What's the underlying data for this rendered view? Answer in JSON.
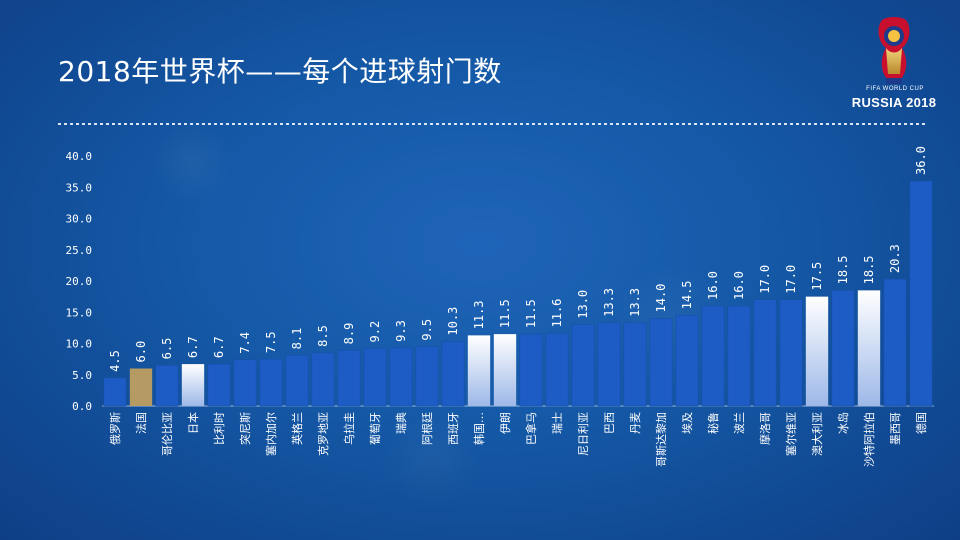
{
  "slide": {
    "title": "2018年世界杯——每个进球射门数",
    "logo_line1": "FIFA WORLD CUP",
    "logo_line2": "RUSSIA 2018"
  },
  "colors": {
    "bar_default": "#1d5cc4",
    "bar_highlight_white": "#e6ecf8",
    "bar_highlight_gold": "#b59b63"
  },
  "chart_data": {
    "type": "bar",
    "title": "",
    "xlabel": "",
    "ylabel": "",
    "ylim": [
      0,
      40
    ],
    "yticks": [
      "0.0",
      "5.0",
      "10.0",
      "15.0",
      "20.0",
      "25.0",
      "30.0",
      "35.0",
      "40.0"
    ],
    "grid": false,
    "categories": [
      "俄罗斯",
      "法国",
      "哥伦比亚",
      "日本",
      "比利时",
      "突尼斯",
      "塞内加尔",
      "英格兰",
      "克罗地亚",
      "乌拉圭",
      "葡萄牙",
      "瑞典",
      "阿根廷",
      "西班牙",
      "韩国…",
      "伊朗",
      "巴拿马",
      "瑞士",
      "尼日利亚",
      "巴西",
      "丹麦",
      "哥斯达黎加",
      "埃及",
      "秘鲁",
      "波兰",
      "摩洛哥",
      "塞尔维亚",
      "澳大利亚",
      "冰岛",
      "沙特阿拉伯",
      "墨西哥",
      "德国"
    ],
    "values": [
      4.5,
      6.0,
      6.5,
      6.7,
      6.7,
      7.4,
      7.5,
      8.1,
      8.5,
      8.9,
      9.2,
      9.3,
      9.5,
      10.3,
      11.3,
      11.5,
      11.5,
      11.6,
      13.0,
      13.3,
      13.3,
      14.0,
      14.5,
      16.0,
      16.0,
      17.0,
      17.0,
      17.5,
      18.5,
      18.5,
      20.3,
      36.0
    ],
    "value_labels": [
      "4.5",
      "6.0",
      "6.5",
      "6.7",
      "6.7",
      "7.4",
      "7.5",
      "8.1",
      "8.5",
      "8.9",
      "9.2",
      "9.3",
      "9.5",
      "10.3",
      "11.3",
      "11.5",
      "11.5",
      "11.6",
      "13.0",
      "13.3",
      "13.3",
      "14.0",
      "14.5",
      "16.0",
      "16.0",
      "17.0",
      "17.0",
      "17.5",
      "18.5",
      "18.5",
      "20.3",
      "36.0"
    ],
    "highlights": [
      "default",
      "gold",
      "default",
      "white",
      "default",
      "default",
      "default",
      "default",
      "default",
      "default",
      "default",
      "default",
      "default",
      "default",
      "white",
      "white",
      "default",
      "default",
      "default",
      "default",
      "default",
      "default",
      "default",
      "default",
      "default",
      "default",
      "default",
      "white",
      "default",
      "white",
      "default",
      "default"
    ]
  }
}
